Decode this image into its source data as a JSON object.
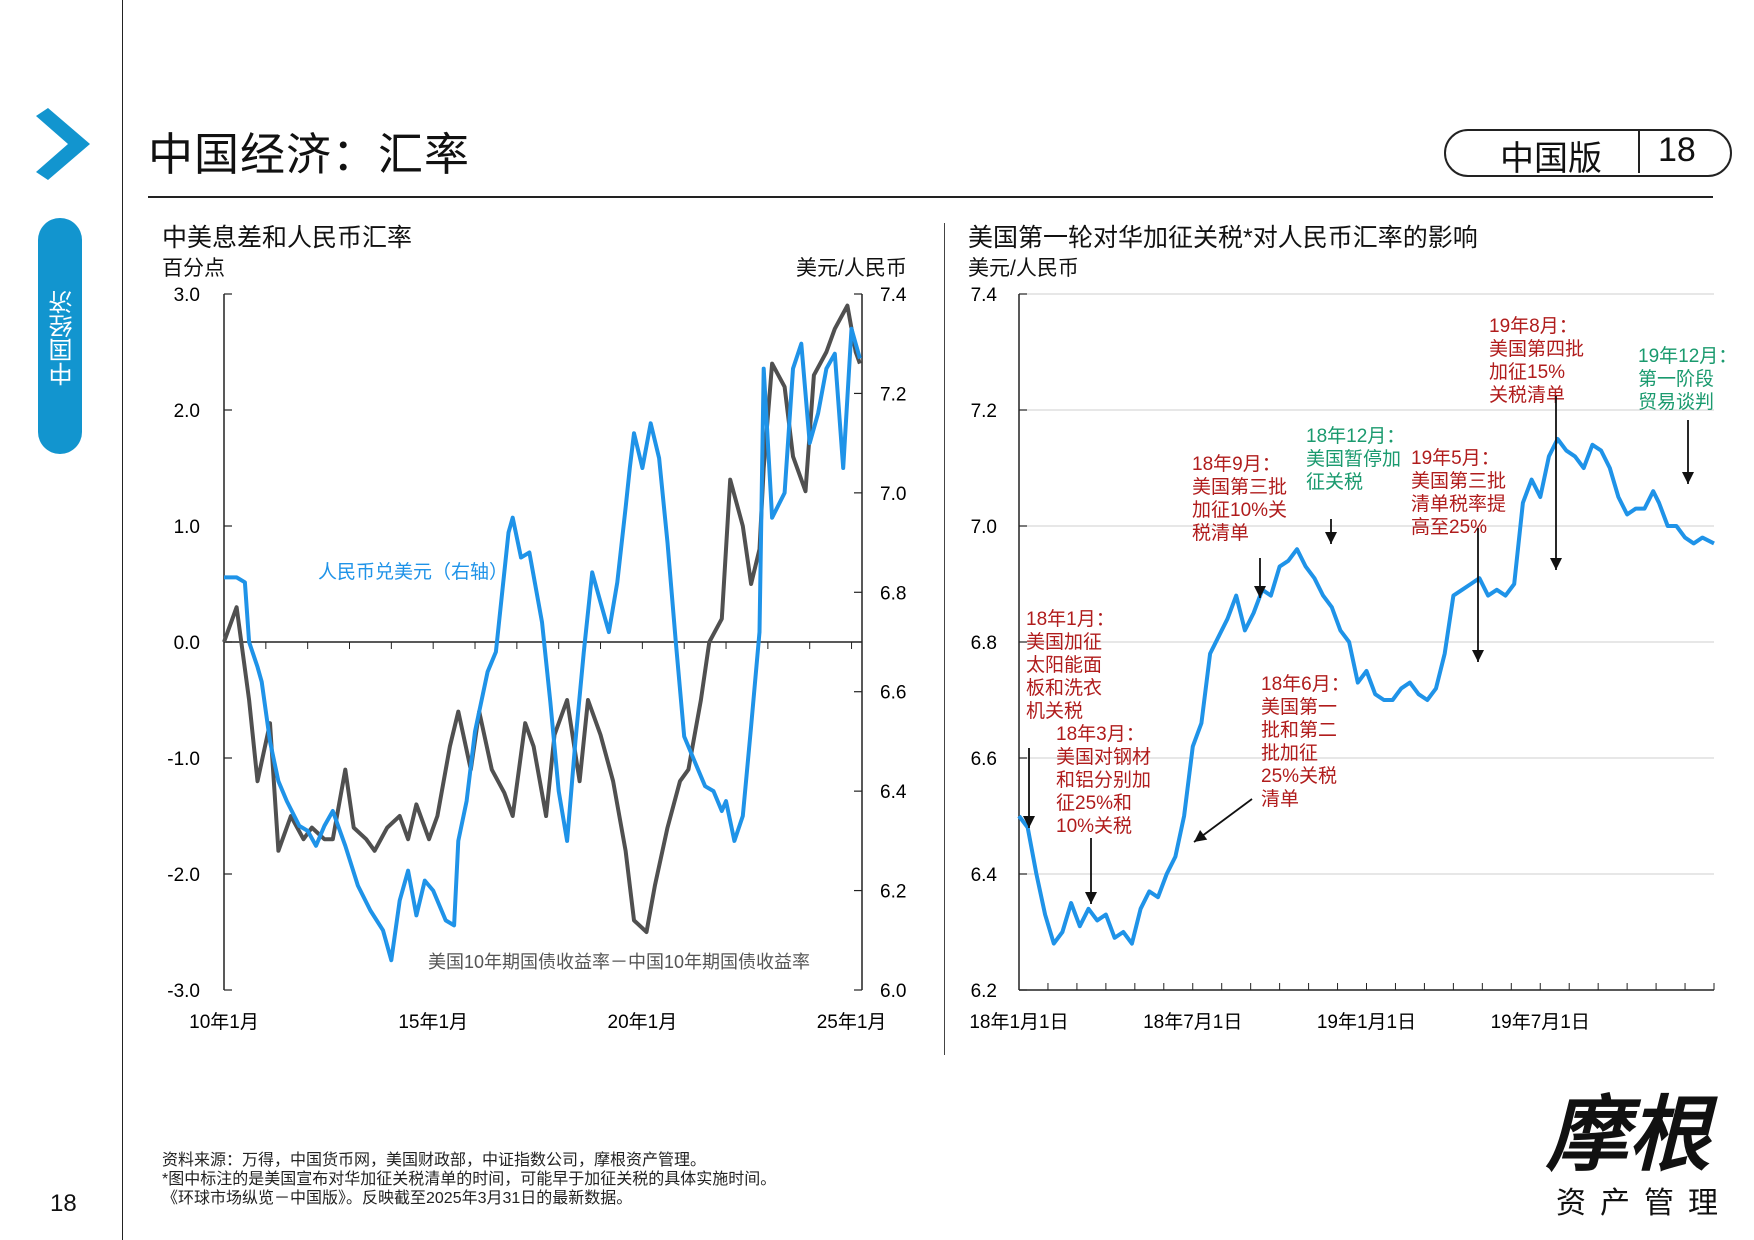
{
  "page": {
    "title": "中国经济：汇率",
    "edition_label": "中国版",
    "edition_number": "18",
    "side_tab": "中国经济",
    "page_number": "18"
  },
  "logo": {
    "main": "摩根",
    "sub": "资产管理"
  },
  "footnotes": [
    "资料来源：万得，中国货币网，美国财政部，中证指数公司，摩根资产管理。",
    "*图中标注的是美国宣布对华加征关税清单的时间，可能早于加征关税的具体实施时间。",
    "《环球市场纵览－中国版》。反映截至2025年3月31日的最新数据。"
  ],
  "colors": {
    "accent": "#1295cf",
    "series_blue": "#1f93e8",
    "series_gray": "#505050",
    "annot_red": "#b01c1c",
    "annot_green": "#1a9a6e"
  },
  "chart_data": [
    {
      "type": "line",
      "title": "中美息差和人民币汇率",
      "ylabel": "百分点",
      "y2label": "美元/人民币",
      "ylim": [
        -3.0,
        3.0
      ],
      "y2lim": [
        6.0,
        7.4
      ],
      "yticks": [
        "3.0",
        "2.0",
        "1.0",
        "0.0",
        "-1.0",
        "-2.0",
        "-3.0"
      ],
      "y2ticks": [
        "7.4",
        "7.2",
        "7.0",
        "6.8",
        "6.6",
        "6.4",
        "6.2",
        "6.0"
      ],
      "xticks": [
        "10年1月",
        "15年1月",
        "20年1月",
        "25年1月"
      ],
      "xlim": [
        2010.0,
        2025.25
      ],
      "series": [
        {
          "name": "人民币兑美元（右轴）",
          "axis": "right",
          "x": [
            2010.0,
            2010.3,
            2010.5,
            2010.6,
            2010.8,
            2010.9,
            2011.1,
            2011.3,
            2011.5,
            2011.8,
            2012.0,
            2012.2,
            2012.4,
            2012.6,
            2012.9,
            2013.2,
            2013.5,
            2013.8,
            2014.0,
            2014.2,
            2014.4,
            2014.6,
            2014.8,
            2015.0,
            2015.3,
            2015.5,
            2015.6,
            2015.8,
            2016.0,
            2016.3,
            2016.5,
            2016.8,
            2016.9,
            2017.1,
            2017.3,
            2017.6,
            2017.8,
            2018.0,
            2018.2,
            2018.4,
            2018.6,
            2018.8,
            2019.0,
            2019.2,
            2019.4,
            2019.6,
            2019.7,
            2019.8,
            2020.0,
            2020.2,
            2020.4,
            2020.6,
            2020.8,
            2021.0,
            2021.3,
            2021.5,
            2021.7,
            2021.9,
            2022.0,
            2022.2,
            2022.4,
            2022.6,
            2022.8,
            2022.9,
            2023.1,
            2023.4,
            2023.6,
            2023.8,
            2024.0,
            2024.2,
            2024.4,
            2024.6,
            2024.8,
            2025.0,
            2025.2
          ],
          "values": [
            6.83,
            6.83,
            6.82,
            6.7,
            6.65,
            6.62,
            6.5,
            6.42,
            6.38,
            6.33,
            6.32,
            6.29,
            6.33,
            6.36,
            6.29,
            6.21,
            6.16,
            6.12,
            6.06,
            6.18,
            6.24,
            6.15,
            6.22,
            6.2,
            6.14,
            6.13,
            6.3,
            6.38,
            6.52,
            6.64,
            6.68,
            6.92,
            6.95,
            6.87,
            6.88,
            6.74,
            6.58,
            6.4,
            6.3,
            6.5,
            6.68,
            6.84,
            6.78,
            6.72,
            6.82,
            6.97,
            7.05,
            7.12,
            7.05,
            7.14,
            7.07,
            6.9,
            6.7,
            6.51,
            6.45,
            6.41,
            6.4,
            6.36,
            6.38,
            6.3,
            6.35,
            6.53,
            6.72,
            7.25,
            6.95,
            7.0,
            7.25,
            7.3,
            7.1,
            7.16,
            7.25,
            7.28,
            7.05,
            7.33,
            7.27
          ]
        },
        {
          "name": "美国10年期国债收益率－中国10年期国债收益率",
          "axis": "left",
          "x": [
            2010.0,
            2010.3,
            2010.6,
            2010.8,
            2011.1,
            2011.3,
            2011.6,
            2011.9,
            2012.1,
            2012.4,
            2012.6,
            2012.9,
            2013.1,
            2013.4,
            2013.6,
            2013.9,
            2014.2,
            2014.4,
            2014.6,
            2014.9,
            2015.1,
            2015.4,
            2015.6,
            2015.9,
            2016.1,
            2016.4,
            2016.7,
            2016.9,
            2017.2,
            2017.4,
            2017.7,
            2017.9,
            2018.2,
            2018.5,
            2018.7,
            2019.0,
            2019.3,
            2019.6,
            2019.8,
            2020.1,
            2020.3,
            2020.6,
            2020.9,
            2021.1,
            2021.4,
            2021.6,
            2021.9,
            2022.1,
            2022.4,
            2022.6,
            2022.8,
            2022.9,
            2023.1,
            2023.4,
            2023.6,
            2023.9,
            2024.1,
            2024.4,
            2024.6,
            2024.9,
            2025.1,
            2025.2
          ],
          "values": [
            0.0,
            0.3,
            -0.5,
            -1.2,
            -0.7,
            -1.8,
            -1.5,
            -1.7,
            -1.6,
            -1.7,
            -1.7,
            -1.1,
            -1.6,
            -1.7,
            -1.8,
            -1.6,
            -1.5,
            -1.7,
            -1.4,
            -1.7,
            -1.5,
            -0.9,
            -0.6,
            -1.1,
            -0.6,
            -1.1,
            -1.3,
            -1.5,
            -0.7,
            -0.9,
            -1.5,
            -0.8,
            -0.5,
            -1.2,
            -0.5,
            -0.8,
            -1.2,
            -1.8,
            -2.4,
            -2.5,
            -2.1,
            -1.6,
            -1.2,
            -1.1,
            -0.5,
            0.0,
            0.2,
            1.4,
            1.0,
            0.5,
            0.8,
            1.5,
            2.4,
            2.2,
            1.6,
            1.3,
            2.3,
            2.5,
            2.7,
            2.9,
            2.5,
            2.4
          ]
        }
      ]
    },
    {
      "type": "line",
      "title": "美国第一轮对华加征关税*对人民币汇率的影响",
      "ylabel": "美元/人民币",
      "ylim": [
        6.2,
        7.4
      ],
      "yticks": [
        "7.4",
        "7.2",
        "7.0",
        "6.8",
        "6.6",
        "6.4",
        "6.2"
      ],
      "xticks": [
        "18年1月1日",
        "18年7月1日",
        "19年1月1日",
        "19年7月1日"
      ],
      "xlim": [
        0,
        24
      ],
      "series": [
        {
          "name": "美元/人民币",
          "x": [
            0,
            0.3,
            0.6,
            0.9,
            1.2,
            1.5,
            1.8,
            2.1,
            2.4,
            2.7,
            3.0,
            3.3,
            3.6,
            3.9,
            4.2,
            4.5,
            4.8,
            5.1,
            5.4,
            5.7,
            6.0,
            6.3,
            6.6,
            6.9,
            7.2,
            7.5,
            7.8,
            8.1,
            8.4,
            8.7,
            9.0,
            9.3,
            9.6,
            9.9,
            10.2,
            10.5,
            10.8,
            11.1,
            11.4,
            11.7,
            12.0,
            12.3,
            12.6,
            12.9,
            13.2,
            13.5,
            13.8,
            14.1,
            14.4,
            14.7,
            15.0,
            15.3,
            15.6,
            15.9,
            16.2,
            16.5,
            16.8,
            17.1,
            17.4,
            17.7,
            18.0,
            18.3,
            18.6,
            18.9,
            19.2,
            19.5,
            19.8,
            20.1,
            20.4,
            20.7,
            21.0,
            21.3,
            21.6,
            21.9,
            22.1,
            22.4,
            22.7,
            23.0,
            23.3,
            23.6,
            24.0
          ],
          "values": [
            6.5,
            6.48,
            6.4,
            6.33,
            6.28,
            6.3,
            6.35,
            6.31,
            6.34,
            6.32,
            6.33,
            6.29,
            6.3,
            6.28,
            6.34,
            6.37,
            6.36,
            6.4,
            6.43,
            6.5,
            6.62,
            6.66,
            6.78,
            6.81,
            6.84,
            6.88,
            6.82,
            6.85,
            6.89,
            6.88,
            6.93,
            6.94,
            6.96,
            6.93,
            6.91,
            6.88,
            6.86,
            6.82,
            6.8,
            6.73,
            6.75,
            6.71,
            6.7,
            6.7,
            6.72,
            6.73,
            6.71,
            6.7,
            6.72,
            6.78,
            6.88,
            6.89,
            6.9,
            6.91,
            6.88,
            6.89,
            6.88,
            6.9,
            7.04,
            7.08,
            7.05,
            7.12,
            7.15,
            7.13,
            7.12,
            7.1,
            7.14,
            7.13,
            7.1,
            7.05,
            7.02,
            7.03,
            7.03,
            7.06,
            7.04,
            7.0,
            7.0,
            6.98,
            6.97,
            6.98,
            6.97
          ]
        }
      ],
      "annotations": [
        {
          "id": "a1",
          "lines": [
            "18年1月：",
            "美国加征",
            "太阳能面",
            "板和洗衣",
            "机关税"
          ],
          "color": "red",
          "x": 0.3
        },
        {
          "id": "a2",
          "lines": [
            "18年3月：",
            "美国对钢材",
            "和铝分别加",
            "征25%和",
            "10%关税"
          ],
          "color": "red",
          "x": 2.6
        },
        {
          "id": "a3",
          "lines": [
            "18年6月：",
            "美国第一",
            "批和第二",
            "批加征",
            "25%关税",
            "清单"
          ],
          "color": "red",
          "x": 5.4
        },
        {
          "id": "a4",
          "lines": [
            "18年9月：",
            "美国第三批",
            "加征10%关",
            "税清单"
          ],
          "color": "red",
          "x": 8.3
        },
        {
          "id": "a5",
          "lines": [
            "18年12月：",
            "美国暂停加",
            "征关税"
          ],
          "color": "green",
          "x": 11.0
        },
        {
          "id": "a6",
          "lines": [
            "19年5月：",
            "美国第三批",
            "清单税率提",
            "高至25%"
          ],
          "color": "red",
          "x": 16.0
        },
        {
          "id": "a7",
          "lines": [
            "19年8月：",
            "美国第四批",
            "加征15%",
            "关税清单"
          ],
          "color": "red",
          "x": 19.0
        },
        {
          "id": "a8",
          "lines": [
            "19年12月：",
            "第一阶段",
            "贸易谈判"
          ],
          "color": "green",
          "x": 23.1
        }
      ]
    }
  ]
}
